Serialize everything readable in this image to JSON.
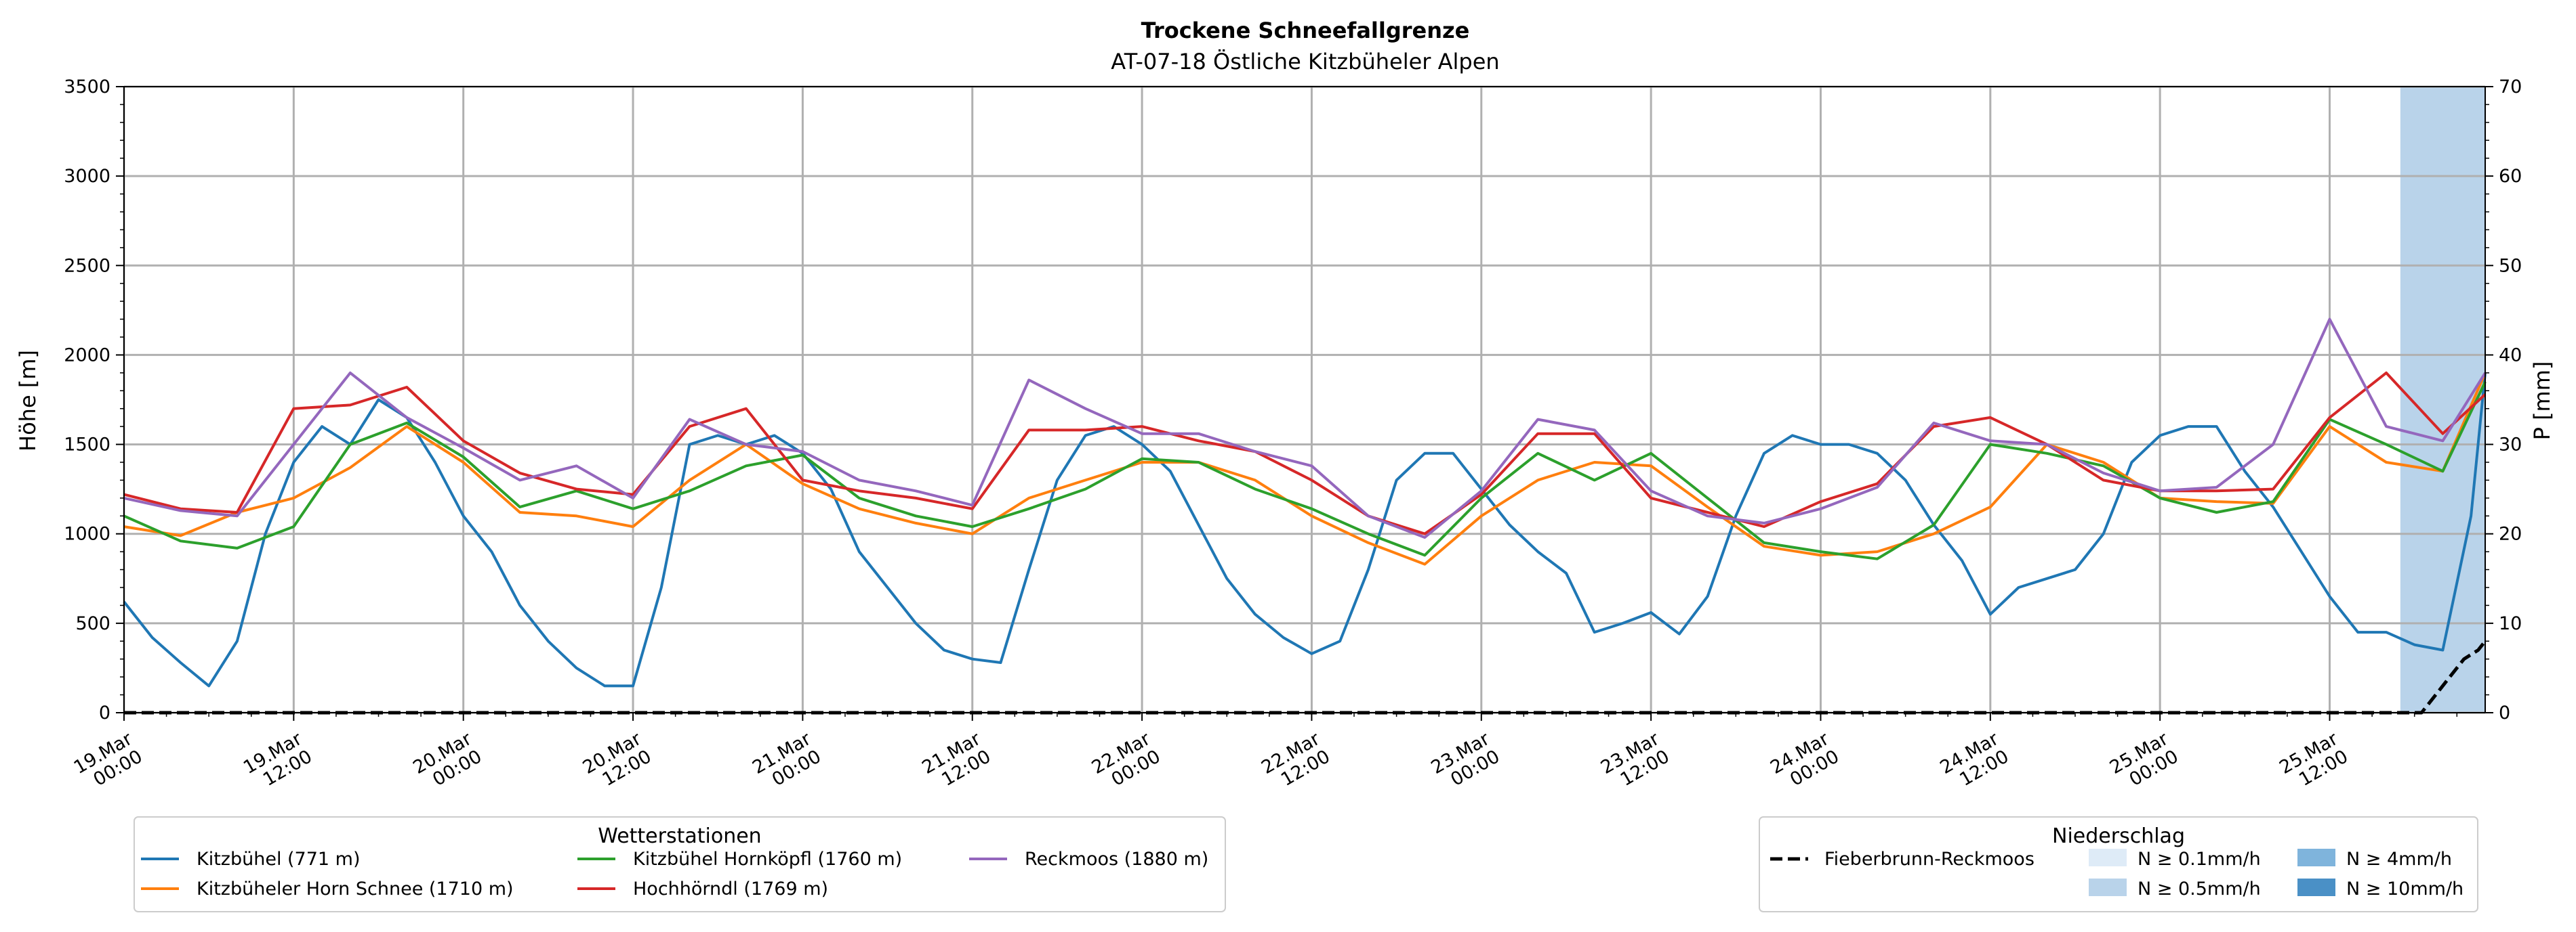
{
  "chart_data": {
    "type": "line",
    "title": "Trockene Schneefallgrenze",
    "subtitle": "AT-07-18 Östliche Kitzbüheler Alpen",
    "ylabel": "Höhe [m]",
    "y2label": "P [mm]",
    "ylim": [
      0,
      3500
    ],
    "y2lim": [
      0,
      70
    ],
    "yticks": [
      "0",
      "500",
      "1000",
      "1500",
      "2000",
      "2500",
      "3000",
      "3500"
    ],
    "y2ticks": [
      "0",
      "10",
      "20",
      "30",
      "40",
      "50",
      "60",
      "70"
    ],
    "x_range_hours": [
      0,
      167
    ],
    "grid": true,
    "xticks": [
      {
        "line1": "19.Mar",
        "line2": "00:00"
      },
      {
        "line1": "19.Mar",
        "line2": "12:00"
      },
      {
        "line1": "20.Mar",
        "line2": "00:00"
      },
      {
        "line1": "20.Mar",
        "line2": "12:00"
      },
      {
        "line1": "21.Mar",
        "line2": "00:00"
      },
      {
        "line1": "21.Mar",
        "line2": "12:00"
      },
      {
        "line1": "22.Mar",
        "line2": "00:00"
      },
      {
        "line1": "22.Mar",
        "line2": "12:00"
      },
      {
        "line1": "23.Mar",
        "line2": "00:00"
      },
      {
        "line1": "23.Mar",
        "line2": "12:00"
      },
      {
        "line1": "24.Mar",
        "line2": "00:00"
      },
      {
        "line1": "24.Mar",
        "line2": "12:00"
      },
      {
        "line1": "25.Mar",
        "line2": "00:00"
      },
      {
        "line1": "25.Mar",
        "line2": "12:00"
      }
    ],
    "series": [
      {
        "name": "Kitzbühel (771 m)",
        "color": "#1f77b4",
        "x": [
          0,
          2,
          4,
          6,
          8,
          10,
          12,
          14,
          16,
          18,
          20,
          22,
          24,
          26,
          28,
          30,
          32,
          34,
          36,
          38,
          40,
          42,
          44,
          46,
          48,
          50,
          52,
          54,
          56,
          58,
          60,
          62,
          64,
          66,
          68,
          70,
          72,
          74,
          76,
          78,
          80,
          82,
          84,
          86,
          88,
          90,
          92,
          94,
          96,
          98,
          100,
          102,
          104,
          106,
          108,
          110,
          112,
          114,
          116,
          118,
          120,
          122,
          124,
          126,
          128,
          130,
          132,
          134,
          136,
          138,
          140,
          142,
          144,
          146,
          148,
          150,
          152,
          154,
          156,
          158,
          160,
          162,
          164,
          166,
          167
        ],
        "y": [
          620,
          420,
          280,
          150,
          400,
          1000,
          1400,
          1600,
          1500,
          1750,
          1650,
          1400,
          1100,
          900,
          600,
          400,
          250,
          150,
          150,
          700,
          1500,
          1550,
          1500,
          1550,
          1450,
          1250,
          900,
          700,
          500,
          350,
          300,
          280,
          800,
          1300,
          1550,
          1600,
          1500,
          1350,
          1050,
          750,
          550,
          420,
          330,
          400,
          800,
          1300,
          1450,
          1450,
          1250,
          1050,
          900,
          780,
          450,
          500,
          560,
          440,
          650,
          1100,
          1450,
          1550,
          1500,
          1500,
          1450,
          1300,
          1050,
          850,
          550,
          700,
          750,
          800,
          1000,
          1400,
          1550,
          1600,
          1600,
          1350,
          1150,
          900,
          650,
          450,
          450,
          380,
          350,
          1100,
          1900
        ]
      },
      {
        "name": "Kitzbüheler Horn Schnee (1710 m)",
        "color": "#ff7f0e",
        "x": [
          0,
          4,
          8,
          12,
          16,
          20,
          24,
          28,
          32,
          36,
          40,
          44,
          48,
          52,
          56,
          60,
          64,
          68,
          72,
          76,
          80,
          84,
          88,
          92,
          96,
          100,
          104,
          108,
          112,
          116,
          120,
          124,
          128,
          132,
          136,
          140,
          144,
          148,
          152,
          156,
          160,
          164,
          167
        ],
        "y": [
          1040,
          990,
          1120,
          1200,
          1370,
          1600,
          1400,
          1120,
          1100,
          1040,
          1300,
          1500,
          1280,
          1140,
          1060,
          1000,
          1200,
          1300,
          1400,
          1400,
          1300,
          1100,
          950,
          830,
          1100,
          1300,
          1400,
          1380,
          1150,
          930,
          880,
          900,
          1000,
          1150,
          1500,
          1400,
          1200,
          1180,
          1170,
          1600,
          1400,
          1350,
          1900
        ]
      },
      {
        "name": "Kitzbühel Hornköpfl (1760 m)",
        "color": "#2ca02c",
        "x": [
          0,
          4,
          8,
          12,
          16,
          20,
          24,
          28,
          32,
          36,
          40,
          44,
          48,
          52,
          56,
          60,
          64,
          68,
          72,
          76,
          80,
          84,
          88,
          92,
          96,
          100,
          104,
          108,
          112,
          116,
          120,
          124,
          128,
          132,
          136,
          140,
          144,
          148,
          152,
          156,
          160,
          164,
          167
        ],
        "y": [
          1100,
          960,
          920,
          1040,
          1500,
          1620,
          1430,
          1150,
          1240,
          1140,
          1240,
          1380,
          1440,
          1200,
          1100,
          1040,
          1140,
          1250,
          1420,
          1400,
          1250,
          1140,
          1000,
          880,
          1200,
          1450,
          1300,
          1450,
          1200,
          950,
          900,
          860,
          1050,
          1500,
          1450,
          1380,
          1200,
          1120,
          1180,
          1640,
          1500,
          1350,
          1850
        ]
      },
      {
        "name": "Hochhörndl (1769 m)",
        "color": "#d62728",
        "x": [
          0,
          4,
          8,
          12,
          16,
          20,
          24,
          28,
          32,
          36,
          40,
          44,
          48,
          52,
          56,
          60,
          64,
          68,
          72,
          76,
          80,
          84,
          88,
          92,
          96,
          100,
          104,
          108,
          112,
          116,
          120,
          124,
          128,
          132,
          136,
          140,
          144,
          148,
          152,
          156,
          160,
          164,
          167
        ],
        "y": [
          1220,
          1140,
          1120,
          1700,
          1720,
          1820,
          1520,
          1340,
          1250,
          1220,
          1600,
          1700,
          1300,
          1240,
          1200,
          1140,
          1580,
          1580,
          1600,
          1520,
          1460,
          1300,
          1100,
          1000,
          1220,
          1560,
          1560,
          1200,
          1120,
          1040,
          1180,
          1280,
          1600,
          1650,
          1500,
          1300,
          1240,
          1240,
          1250,
          1650,
          1900,
          1560,
          1780
        ]
      },
      {
        "name": "Reckmoos (1880 m)",
        "color": "#9467bd",
        "x": [
          0,
          4,
          8,
          12,
          16,
          20,
          24,
          28,
          32,
          36,
          40,
          44,
          48,
          52,
          56,
          60,
          64,
          68,
          72,
          76,
          80,
          84,
          88,
          92,
          96,
          100,
          104,
          108,
          112,
          116,
          120,
          124,
          128,
          132,
          136,
          140,
          144,
          148,
          152,
          156,
          160,
          164,
          167
        ],
        "y": [
          1200,
          1130,
          1100,
          1500,
          1900,
          1650,
          1480,
          1300,
          1380,
          1200,
          1640,
          1500,
          1460,
          1300,
          1240,
          1160,
          1860,
          1700,
          1560,
          1560,
          1460,
          1380,
          1100,
          980,
          1240,
          1640,
          1580,
          1240,
          1100,
          1060,
          1140,
          1260,
          1620,
          1520,
          1500,
          1340,
          1240,
          1260,
          1500,
          2200,
          1600,
          1520,
          1900
        ]
      },
      {
        "name": "Fieberbrunn-Reckmoos",
        "color": "#000000",
        "dashed": true,
        "axis": "right",
        "x": [
          0,
          162.5,
          163.5,
          164.5,
          165.5,
          166.5,
          167
        ],
        "y": [
          0,
          0,
          2,
          4,
          6,
          7,
          8
        ]
      }
    ],
    "precip_bands": [
      {
        "x_start": 161,
        "x_end": 167,
        "level": "N ≥ 0.5mm/h"
      }
    ],
    "legend_stations": {
      "title": "Wetterstationen",
      "entries": [
        "Kitzbühel (771 m)",
        "Kitzbüheler Horn Schnee (1710 m)",
        "Kitzbühel Hornköpfl (1760 m)",
        "Hochhörndl (1769 m)",
        "Reckmoos (1880 m)"
      ],
      "placement": "bottom-left"
    },
    "legend_precip": {
      "title": "Niederschlag",
      "line_entry": "Fieberbrunn-Reckmoos",
      "patches": [
        {
          "label": "N ≥ 0.1mm/h",
          "color": "#deebf7"
        },
        {
          "label": "N ≥ 0.5mm/h",
          "color": "#b9d3ea"
        },
        {
          "label": "N ≥ 4mm/h",
          "color": "#7fb4dc"
        },
        {
          "label": "N ≥ 10mm/h",
          "color": "#4a90c6"
        }
      ],
      "placement": "bottom-right"
    }
  }
}
